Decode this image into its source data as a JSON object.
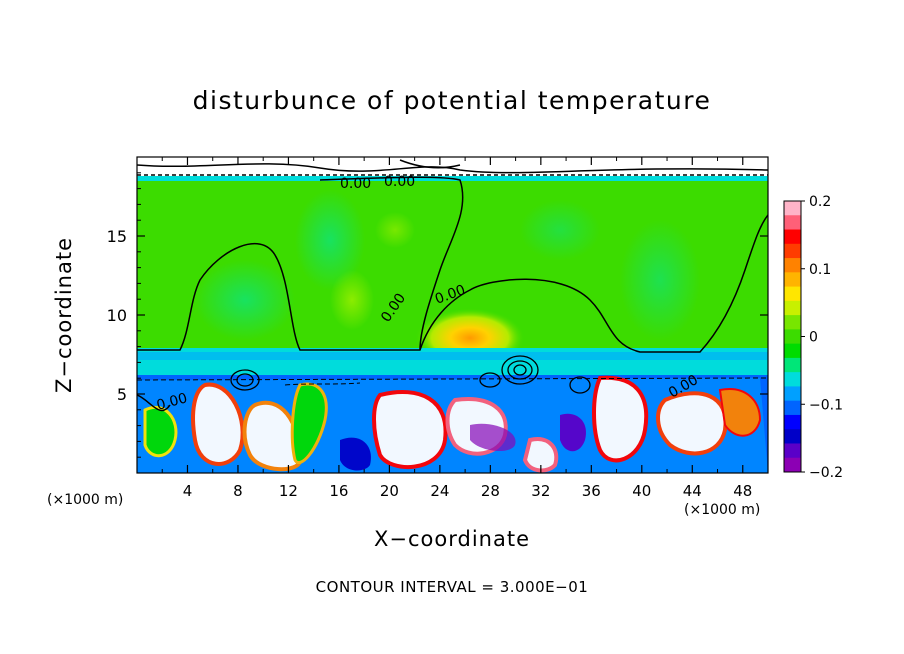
{
  "chart_data": {
    "type": "heatmap",
    "title": "disturbunce of potential temperature",
    "xlabel": "X−coordinate",
    "ylabel": "Z−coordinate",
    "x_unit": "(×1000 m)",
    "xlim": [
      0,
      50
    ],
    "ylim": [
      0,
      20
    ],
    "x_ticks": [
      "4",
      "8",
      "12",
      "16",
      "20",
      "24",
      "28",
      "32",
      "36",
      "40",
      "44",
      "48"
    ],
    "x_tick_values": [
      4,
      8,
      12,
      16,
      20,
      24,
      28,
      32,
      36,
      40,
      44,
      48
    ],
    "y_ticks": [
      "5",
      "10",
      "15"
    ],
    "y_tick_values": [
      5,
      10,
      15
    ],
    "colorbar": {
      "range": [
        -0.2,
        0.2
      ],
      "tick_labels": [
        "0.2",
        "0.1",
        "0",
        "−0.1",
        "−0.2"
      ],
      "tick_values": [
        0.2,
        0.1,
        0,
        -0.1,
        -0.2
      ],
      "colors": [
        "#ffb4c8",
        "#ff6078",
        "#ff0000",
        "#ff3c00",
        "#ff8200",
        "#ffb400",
        "#ffe600",
        "#c8f000",
        "#78e600",
        "#3cdc00",
        "#00dc00",
        "#00e678",
        "#00dcdc",
        "#00a0ff",
        "#0064ff",
        "#0000ff",
        "#0000c8",
        "#5a00c8",
        "#8c00b4"
      ]
    },
    "contour_labels": [
      "0.00",
      "0.00",
      "0.00",
      "0.00",
      "0.00",
      "0.00"
    ],
    "contour_interval_text": "CONTOUR INTERVAL = 3.000E−01",
    "fields": {
      "upper_region_value": 0,
      "tropopause_band_z": [
        6.2,
        7.6
      ],
      "warm_anomaly_center": [
        27,
        8.5
      ],
      "lower_region_range": [
        -0.2,
        0.2
      ]
    }
  }
}
